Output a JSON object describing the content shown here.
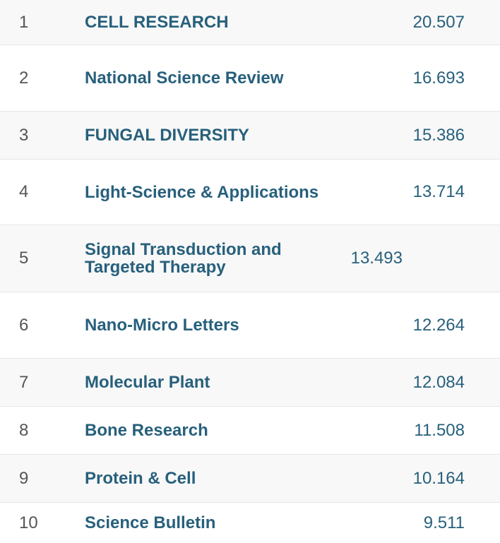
{
  "rows": [
    {
      "rank": "1",
      "journal": "CELL RESEARCH",
      "score": "20.507"
    },
    {
      "rank": "2",
      "journal": "National Science Review",
      "score": "16.693"
    },
    {
      "rank": "3",
      "journal": "FUNGAL DIVERSITY",
      "score": "15.386"
    },
    {
      "rank": "4",
      "journal": "Light-Science & Applications",
      "score": "13.714"
    },
    {
      "rank": "5",
      "journal": "Signal Transduction and Targeted Therapy",
      "score": "13.493"
    },
    {
      "rank": "6",
      "journal": "Nano-Micro Letters",
      "score": "12.264"
    },
    {
      "rank": "7",
      "journal": "Molecular Plant",
      "score": "12.084"
    },
    {
      "rank": "8",
      "journal": "Bone Research",
      "score": "11.508"
    },
    {
      "rank": "9",
      "journal": "Protein & Cell",
      "score": "10.164"
    },
    {
      "rank": "10",
      "journal": "Science Bulletin",
      "score": "9.511"
    }
  ],
  "colors": {
    "link": "#27607c",
    "rank_text": "#555555",
    "row_alt": "#f8f8f8",
    "divider": "#e6e6e6"
  }
}
